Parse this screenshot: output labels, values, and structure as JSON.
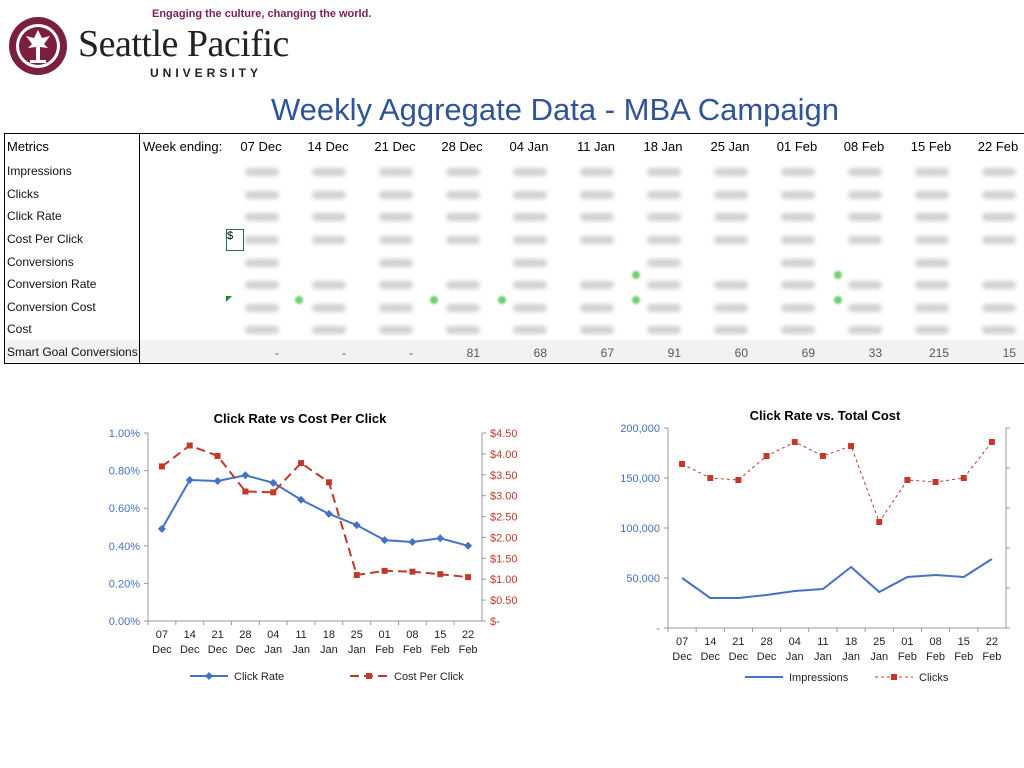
{
  "header": {
    "tagline": "Engaging the culture, changing the world.",
    "university_name": "Seattle Pacific",
    "university_sub": "UNIVERSITY",
    "title": "Weekly Aggregate Data - MBA Campaign"
  },
  "table": {
    "metrics_header": "Metrics",
    "week_label": "Week ending:",
    "dates": [
      "07 Dec",
      "14 Dec",
      "21 Dec",
      "28 Dec",
      "04 Jan",
      "11 Jan",
      "18 Jan",
      "25 Jan",
      "01 Feb",
      "08 Feb",
      "15 Feb",
      "22 Feb"
    ],
    "metrics": [
      "Impressions",
      "Clicks",
      "Click Rate",
      "Cost Per Click",
      "Conversions",
      "Conversion Rate",
      "Conversion Cost",
      "Cost",
      "Smart Goal Conversions"
    ],
    "smart_goal_values": [
      "-",
      "-",
      "-",
      "81",
      "68",
      "67",
      "91",
      "60",
      "69",
      "33",
      "215",
      "15"
    ],
    "selected_cell": "$"
  },
  "chart_data": [
    {
      "type": "line",
      "title": "Click Rate vs Cost Per Click",
      "categories": [
        "07 Dec",
        "14 Dec",
        "21 Dec",
        "28 Dec",
        "04 Jan",
        "11 Jan",
        "18 Jan",
        "25 Jan",
        "01 Feb",
        "08 Feb",
        "15 Feb",
        "22 Feb"
      ],
      "series": [
        {
          "name": "Click Rate",
          "axis": "left",
          "color": "#4472c4",
          "style": "solid",
          "marker": "diamond",
          "values": [
            0.49,
            0.75,
            0.745,
            0.775,
            0.735,
            0.645,
            0.57,
            0.51,
            0.43,
            0.42,
            0.44,
            0.4
          ]
        },
        {
          "name": "Cost Per Click",
          "axis": "right",
          "color": "#c0392b",
          "style": "dashed",
          "marker": "square",
          "values": [
            3.7,
            4.2,
            3.95,
            3.1,
            3.08,
            3.78,
            3.32,
            1.1,
            1.2,
            1.18,
            1.12,
            1.05
          ]
        }
      ],
      "y_left": {
        "min": 0,
        "max": 1.0,
        "ticks": [
          "0.00%",
          "0.20%",
          "0.40%",
          "0.60%",
          "0.80%",
          "1.00%"
        ]
      },
      "y_right": {
        "min": 0,
        "max": 4.5,
        "ticks": [
          "$-",
          "$0.50",
          "$1.00",
          "$1.50",
          "$2.00",
          "$2.50",
          "$3.00",
          "$3.50",
          "$4.00",
          "$4.50"
        ]
      },
      "legend": "bottom"
    },
    {
      "type": "line",
      "title": "Click Rate vs. Total Cost",
      "categories": [
        "07 Dec",
        "14 Dec",
        "21 Dec",
        "28 Dec",
        "04 Jan",
        "11 Jan",
        "18 Jan",
        "25 Jan",
        "01 Feb",
        "08 Feb",
        "15 Feb",
        "22 Feb"
      ],
      "series": [
        {
          "name": "Impressions",
          "axis": "left",
          "color": "#4472c4",
          "style": "solid",
          "marker": "none",
          "values": [
            50000,
            30000,
            30000,
            33000,
            37000,
            39000,
            61000,
            36000,
            51000,
            53000,
            51000,
            69000
          ]
        },
        {
          "name": "Clicks",
          "axis": "right",
          "color": "#c0392b",
          "style": "dotted",
          "marker": "square",
          "values": [
            0.82,
            0.75,
            0.74,
            0.86,
            0.93,
            0.86,
            0.91,
            0.53,
            0.74,
            0.73,
            0.75,
            0.93
          ]
        }
      ],
      "y_left": {
        "min": 0,
        "max": 200000,
        "ticks": [
          "-",
          "50,000",
          "100,000",
          "150,000",
          "200,000"
        ]
      },
      "legend": "bottom"
    }
  ]
}
